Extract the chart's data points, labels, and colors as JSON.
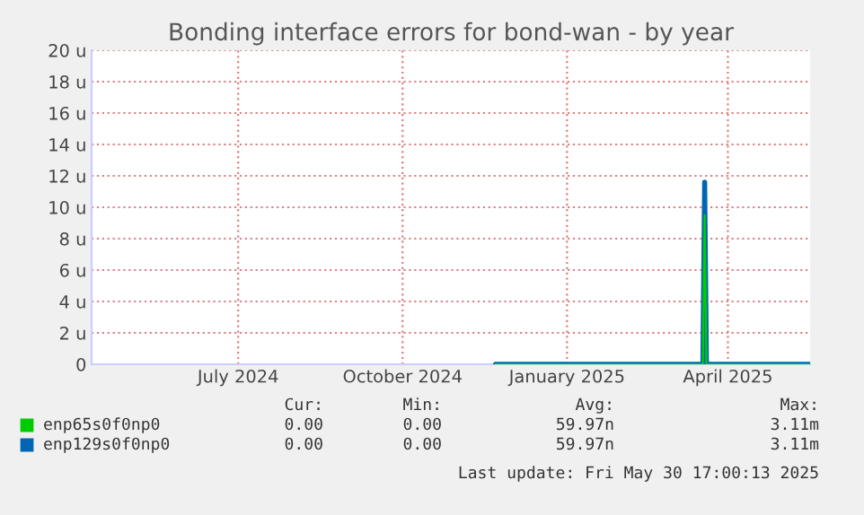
{
  "chart_data": {
    "type": "line",
    "title": "Bonding interface errors for bond-wan - by year",
    "xlim": [
      "2024-04-10",
      "2025-05-17"
    ],
    "xticks": [
      {
        "value": "2024-07-01",
        "label": "July 2024"
      },
      {
        "value": "2024-10-01",
        "label": "October 2024"
      },
      {
        "value": "2025-01-01",
        "label": "January 2025"
      },
      {
        "value": "2025-04-01",
        "label": "April 2025"
      }
    ],
    "ylim": [
      0,
      20
    ],
    "yticks": [
      {
        "value": 0,
        "label": "0"
      },
      {
        "value": 2,
        "label": "2 u"
      },
      {
        "value": 4,
        "label": "4 u"
      },
      {
        "value": 6,
        "label": "6 u"
      },
      {
        "value": 8,
        "label": "8 u"
      },
      {
        "value": 10,
        "label": "10 u"
      },
      {
        "value": 12,
        "label": "12 u"
      },
      {
        "value": 14,
        "label": "14 u"
      },
      {
        "value": 16,
        "label": "16 u"
      },
      {
        "value": 18,
        "label": "18 u"
      },
      {
        "value": 20,
        "label": "20 u"
      }
    ],
    "x": [
      "2024-11-22",
      "2025-03-18",
      "2025-03-19",
      "2025-03-20",
      "2025-05-17"
    ],
    "series": [
      {
        "name": "enp65s0f0np0",
        "color": "#00cc00",
        "values": [
          0,
          0,
          9.5,
          0,
          0
        ]
      },
      {
        "name": "enp129s0f0np0",
        "color": "#0066b3",
        "values": [
          0,
          0,
          11.6,
          0,
          0
        ]
      }
    ],
    "grid": true,
    "legend": "bottom",
    "annotations": [
      "Cur:",
      "Min:",
      "Avg:",
      "Max:",
      "0.00",
      "0.00",
      "59.97n",
      "3.11m",
      "0.00",
      "0.00",
      "59.97n",
      "3.11m",
      "Last update: Fri May 30 17:00:13 2025"
    ]
  }
}
